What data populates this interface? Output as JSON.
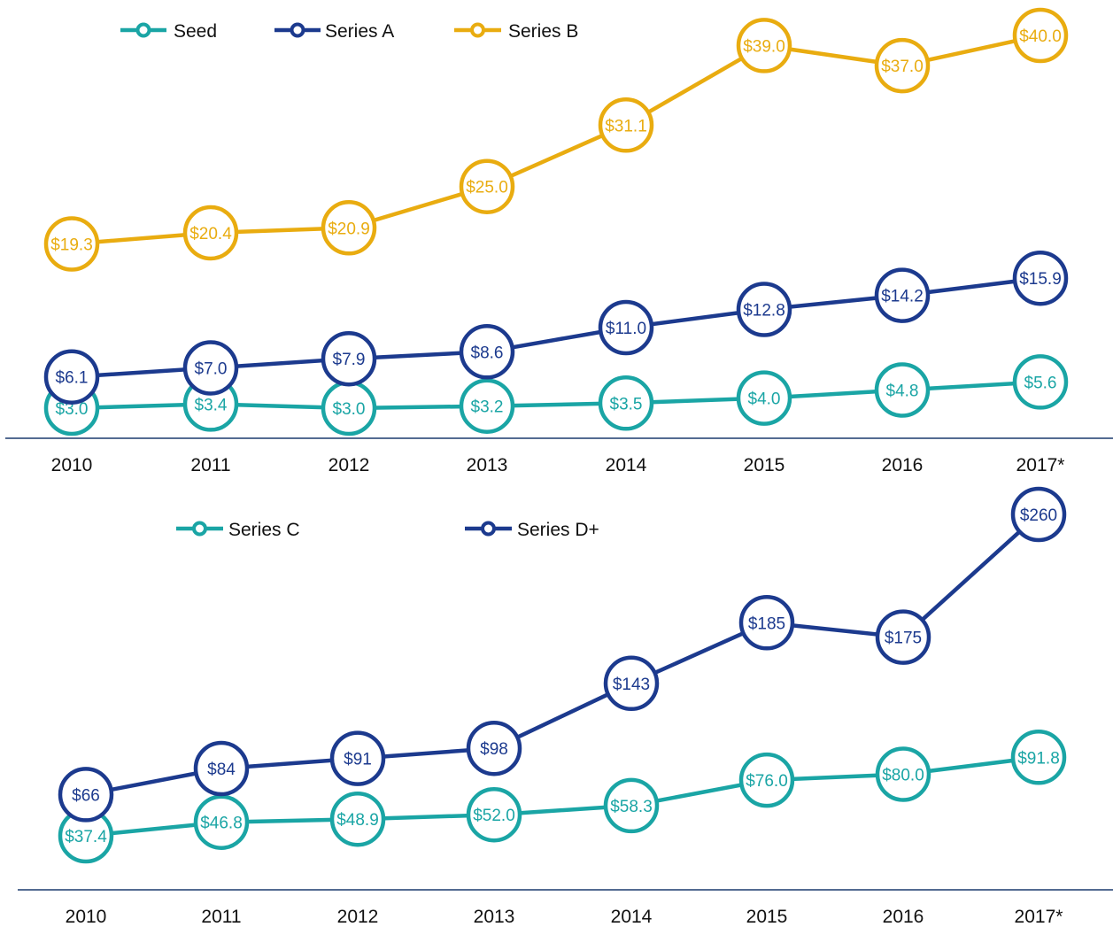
{
  "chart_data": [
    {
      "type": "line",
      "title": "",
      "xlabel": "",
      "ylabel": "",
      "categories": [
        "2010",
        "2011",
        "2012",
        "2013",
        "2014",
        "2015",
        "2016",
        "2017*"
      ],
      "legend_position": "top",
      "grid": false,
      "series": [
        {
          "name": "Seed",
          "color": "#1aa5a5",
          "values": [
            3.0,
            3.4,
            3.0,
            3.2,
            3.5,
            4.0,
            4.8,
            5.6
          ],
          "labels": [
            "$3.0",
            "$3.4",
            "$3.0",
            "$3.2",
            "$3.5",
            "$4.0",
            "$4.8",
            "$5.6"
          ]
        },
        {
          "name": "Series A",
          "color": "#1c3a8e",
          "values": [
            6.1,
            7.0,
            7.9,
            8.6,
            11.0,
            12.8,
            14.2,
            15.9
          ],
          "labels": [
            "$6.1",
            "$7.0",
            "$7.9",
            "$8.6",
            "$11.0",
            "$12.8",
            "$14.2",
            "$15.9"
          ]
        },
        {
          "name": "Series B",
          "color": "#e9ac10",
          "values": [
            19.3,
            20.4,
            20.9,
            25.0,
            31.1,
            39.0,
            37.0,
            40.0
          ],
          "labels": [
            "$19.3",
            "$20.4",
            "$20.9",
            "$25.0",
            "$31.1",
            "$39.0",
            "$37.0",
            "$40.0"
          ]
        }
      ]
    },
    {
      "type": "line",
      "title": "",
      "xlabel": "",
      "ylabel": "",
      "categories": [
        "2010",
        "2011",
        "2012",
        "2013",
        "2014",
        "2015",
        "2016",
        "2017*"
      ],
      "legend_position": "top",
      "grid": false,
      "series": [
        {
          "name": "Series C",
          "color": "#1aa5a5",
          "values": [
            37.4,
            46.8,
            48.9,
            52.0,
            58.3,
            76.0,
            80.0,
            91.8
          ],
          "labels": [
            "$37.4",
            "$46.8",
            "$48.9",
            "$52.0",
            "$58.3",
            "$76.0",
            "$80.0",
            "$91.8"
          ]
        },
        {
          "name": "Series D+",
          "color": "#1c3a8e",
          "values": [
            66,
            84,
            91,
            98,
            143,
            185,
            175,
            260
          ],
          "labels": [
            "$66",
            "$84",
            "$91",
            "$98",
            "$143",
            "$185",
            "$175",
            "$260"
          ]
        }
      ]
    }
  ],
  "axis_line_color": "#1c3a6e"
}
